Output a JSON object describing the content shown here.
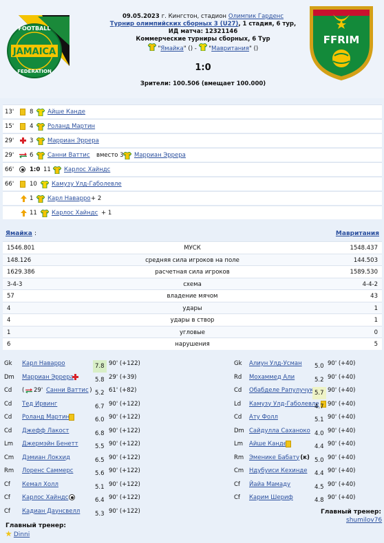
{
  "match": {
    "date": "09.05.2023",
    "city": "г. Кингстон, стадион",
    "stadium": "Олимпик Гарденс",
    "tournament": "Турнир олимпийских сборных 3 (U27)",
    "stage": ", 1 стадия, 6 тур,",
    "match_id": "ИД матча: 12321146",
    "league": "Коммерческие турниры сборных, 6 Тур",
    "home": "Ямайка",
    "away": "Мавритания",
    "home_paren": "()",
    "away_paren": "()",
    "dash": "-",
    "score": "1:0",
    "attendance": "Зрители: 100.506 (вмещает 100.000)"
  },
  "crests": {
    "home_text_top": "FOOTBALL",
    "home_text_mid": "JAMAICA",
    "home_text_bot": "FEDERATION",
    "away_text": "FFRIM"
  },
  "events": [
    {
      "min": "13'",
      "icon": "yellow-card",
      "num": "8",
      "player": "Айше Канде",
      "extra": ""
    },
    {
      "min": "15'",
      "icon": "yellow-card",
      "num": "4",
      "player": "Роланд Мартин",
      "extra": ""
    },
    {
      "min": "29'",
      "icon": "injury-cross",
      "num": "3",
      "player": "Марриан Эррера",
      "extra": ""
    },
    {
      "min": "29'",
      "icon": "substitution",
      "num": "6",
      "player": "Санни Ваттис",
      "mid": "вместо 3",
      "player2": "Марриан Эррера"
    },
    {
      "min": "66'",
      "icon": "goal-ball",
      "score": "1:0",
      "num": "11",
      "player": "Карлос Хайндс",
      "extra": ""
    },
    {
      "min": "66'",
      "icon": "yellow-card",
      "num": "10",
      "player": "Камузу Улд-Габолевле",
      "extra": ""
    },
    {
      "min": "",
      "icon": "rating-up",
      "num": "1",
      "player": "Карл Наварро",
      "extra": "+ 2"
    },
    {
      "min": "",
      "icon": "rating-up",
      "num": "11",
      "player": "Карлос Хайндс",
      "extra": "+ 1"
    }
  ],
  "stats": {
    "home_team": "Ямайка",
    "away_team": "Мавритания",
    "rows": [
      {
        "home": "1546.801",
        "label": "МУСК",
        "away": "1548.437"
      },
      {
        "home": "148.126",
        "label": "средняя сила игроков на поле",
        "away": "144.503"
      },
      {
        "home": "1629.386",
        "label": "расчетная сила игроков",
        "away": "1589.530"
      },
      {
        "home": "3-4-3",
        "label": "схема",
        "away": "4-4-2"
      },
      {
        "home": "57",
        "label": "владение мячом",
        "away": "43"
      },
      {
        "home": "4",
        "label": "удары",
        "away": "1"
      },
      {
        "home": "4",
        "label": "удары в створ",
        "away": "1"
      },
      {
        "home": "1",
        "label": "угловые",
        "away": "0"
      },
      {
        "home": "6",
        "label": "нарушения",
        "away": "5"
      }
    ]
  },
  "home_lineup": [
    {
      "pos": "Gk",
      "name": "Карл Наварро",
      "rating": "7.8",
      "time": "90' (+122)",
      "mark": "none",
      "hl": "green"
    },
    {
      "pos": "Dm",
      "name": "Марриан Эррера",
      "rating": "5.8",
      "time": "29' (+39)",
      "mark": "injury",
      "hl": ""
    },
    {
      "pos": "Cd",
      "name": "Санни Ваттис",
      "rating": "5.2",
      "time": "61' (+82)",
      "mark": "sub",
      "prefix": "(",
      "prefix_min": "29'",
      "suffix": ")",
      "hl": ""
    },
    {
      "pos": "Cd",
      "name": "Тед Ирвинг",
      "rating": "6.7",
      "time": "90' (+122)",
      "mark": "none",
      "hl": ""
    },
    {
      "pos": "Cd",
      "name": "Роланд Мартин",
      "rating": "6.0",
      "time": "90' (+122)",
      "mark": "yellow",
      "hl": ""
    },
    {
      "pos": "Cd",
      "name": "Джефф Лакост",
      "rating": "6.8",
      "time": "90' (+122)",
      "mark": "none",
      "hl": ""
    },
    {
      "pos": "Lm",
      "name": "Джермэйн Бенетт",
      "rating": "5.5",
      "time": "90' (+122)",
      "mark": "none",
      "hl": ""
    },
    {
      "pos": "Cm",
      "name": "Дэмиан Локхид",
      "rating": "6.5",
      "time": "90' (+122)",
      "mark": "none",
      "hl": ""
    },
    {
      "pos": "Rm",
      "name": "Лоренс Саммерс",
      "rating": "5.6",
      "time": "90' (+122)",
      "mark": "none",
      "hl": ""
    },
    {
      "pos": "Cf",
      "name": "Кемал Холл",
      "rating": "5.1",
      "time": "90' (+122)",
      "mark": "none",
      "hl": ""
    },
    {
      "pos": "Cf",
      "name": "Карлос Хайндс",
      "rating": "6.4",
      "time": "90' (+122)",
      "mark": "goal",
      "hl": ""
    },
    {
      "pos": "Cf",
      "name": "Кадиан Даунсвелл",
      "rating": "5.3",
      "time": "90' (+122)",
      "mark": "none",
      "hl": ""
    }
  ],
  "away_lineup": [
    {
      "pos": "Gk",
      "name": "Алиун Улд-Усман",
      "rating": "5.0",
      "time": "90' (+40)",
      "mark": "none",
      "hl": ""
    },
    {
      "pos": "Rd",
      "name": "Мохаммед Али",
      "rating": "5.2",
      "time": "90' (+40)",
      "mark": "none",
      "hl": ""
    },
    {
      "pos": "Cd",
      "name": "Обабделе Рапулучукву",
      "rating": "5.7",
      "time": "90' (+40)",
      "mark": "none",
      "hl": "yellow"
    },
    {
      "pos": "Ld",
      "name": "Камузу Улд-Габолевле",
      "rating": "4.7",
      "time": "90' (+40)",
      "mark": "yellow",
      "hl": ""
    },
    {
      "pos": "Cd",
      "name": "Ату Фолл",
      "rating": "5.1",
      "time": "90' (+40)",
      "mark": "none",
      "hl": ""
    },
    {
      "pos": "Dm",
      "name": "Сайдулла Саханоко",
      "rating": "4.0",
      "time": "90' (+40)",
      "mark": "none",
      "hl": ""
    },
    {
      "pos": "Lm",
      "name": "Айше Канде",
      "rating": "4.4",
      "time": "90' (+40)",
      "mark": "yellow",
      "hl": ""
    },
    {
      "pos": "Rm",
      "name": "Эменике Бабату",
      "rating": "5.0",
      "time": "90' (+40)",
      "mark": "captain",
      "hl": ""
    },
    {
      "pos": "Cm",
      "name": "Ндубуиси Кехинде",
      "rating": "4.4",
      "time": "90' (+40)",
      "mark": "none",
      "hl": ""
    },
    {
      "pos": "Cf",
      "name": "Йайа Мамаду",
      "rating": "4.5",
      "time": "90' (+40)",
      "mark": "none",
      "hl": ""
    },
    {
      "pos": "Cf",
      "name": "Карим Шериф",
      "rating": "4.8",
      "time": "90' (+40)",
      "mark": "none",
      "hl": ""
    }
  ],
  "captain_mark": "(к)",
  "coaches": {
    "label": "Главный тренер:",
    "home": "Dinni",
    "away": "shumilov76"
  },
  "colors": {
    "link": "#2a4f9e",
    "background": "#e9f0f9",
    "yellow_card": "#f0c419",
    "rating_green": "#d8eec6"
  }
}
